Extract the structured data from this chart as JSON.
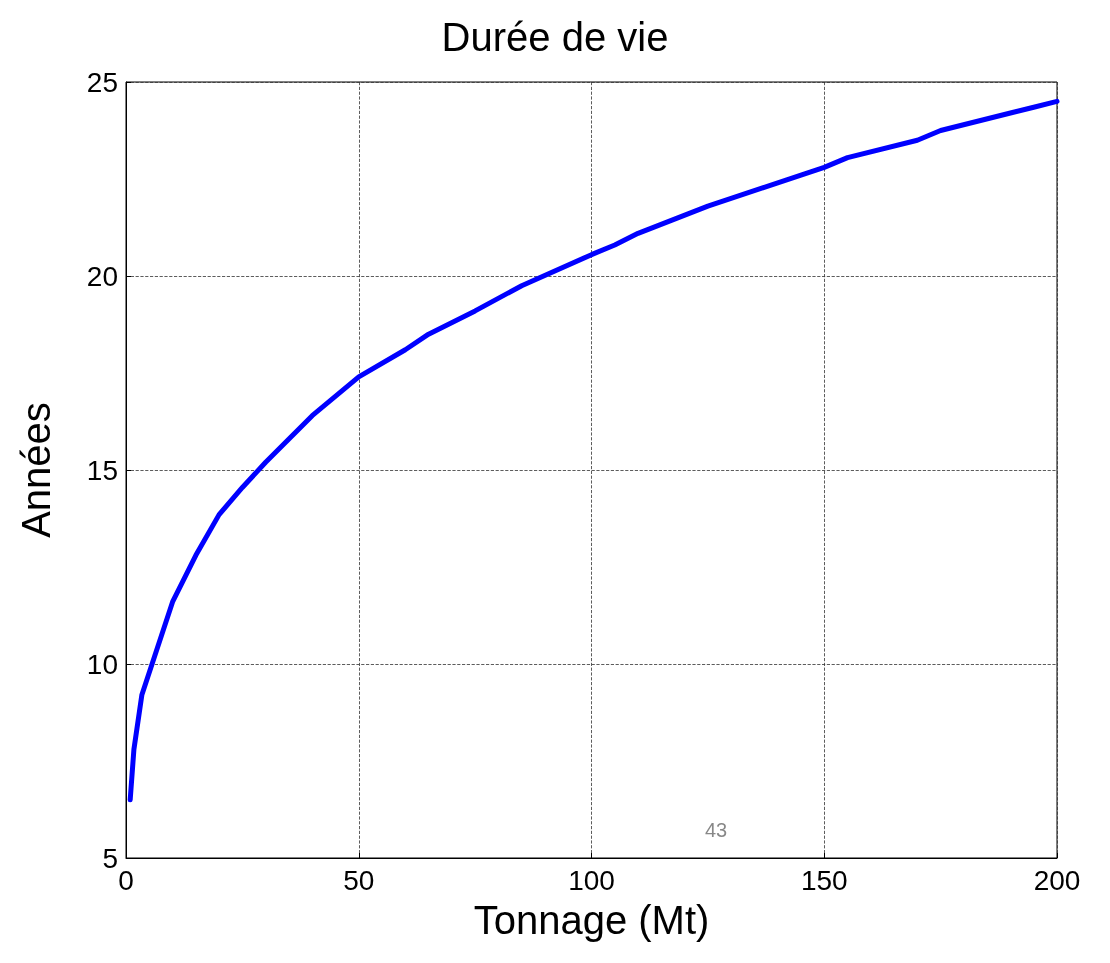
{
  "chart_data": {
    "type": "line",
    "title": "Durée de vie",
    "xlabel": "Tonnage (Mt)",
    "ylabel": "Années",
    "annotations": [
      "43"
    ],
    "x": [
      0.9,
      1.7,
      3.4,
      10,
      15,
      20,
      25,
      30,
      35,
      40,
      50,
      60,
      65,
      75,
      85,
      100,
      105,
      110,
      125,
      145,
      150,
      155,
      170,
      175,
      190,
      195,
      200
    ],
    "series": [
      {
        "color": "#0000ff",
        "values": [
          6.5,
          7.8,
          9.2,
          11.6,
          12.8,
          13.85,
          14.55,
          15.2,
          15.8,
          16.4,
          17.4,
          18.1,
          18.5,
          19.1,
          19.75,
          20.55,
          20.8,
          21.1,
          21.8,
          22.6,
          22.8,
          23.05,
          23.5,
          23.75,
          24.2,
          24.35,
          24.5
        ]
      }
    ],
    "xlim": [
      0,
      200
    ],
    "xticks": [
      0,
      50,
      100,
      150,
      200
    ],
    "ylim": [
      5,
      25
    ],
    "yticks": [
      5,
      10,
      15,
      20,
      25
    ],
    "grid": true,
    "marker": "none",
    "line_style": "solid"
  }
}
